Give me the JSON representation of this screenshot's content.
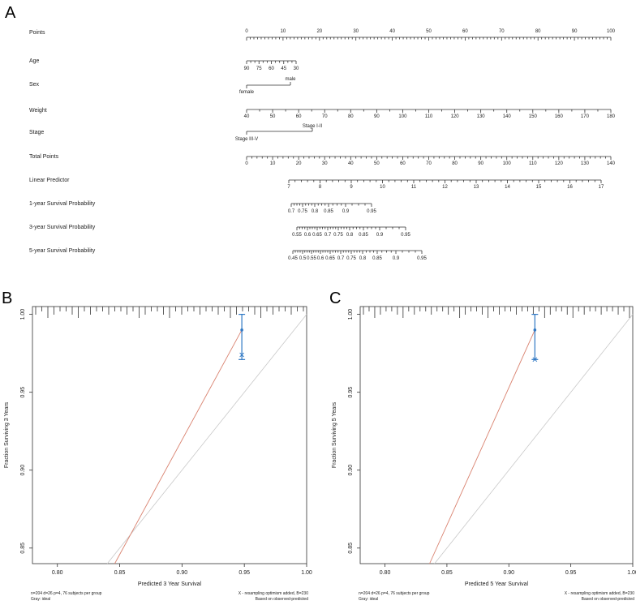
{
  "panels": {
    "a": "A",
    "b": "B",
    "c": "C"
  },
  "nomogram": {
    "rows": [
      {
        "label": "Points",
        "scale": "points"
      },
      {
        "label": "Age",
        "scale": "age"
      },
      {
        "label": "Sex",
        "scale": "sex"
      },
      {
        "label": "Weight",
        "scale": "weight"
      },
      {
        "label": "Stage",
        "scale": "stage"
      },
      {
        "label": "Total Points",
        "scale": "total"
      },
      {
        "label": "Linear Predictor",
        "scale": "lp"
      },
      {
        "label": "1-year Survival Probability",
        "scale": "s1"
      },
      {
        "label": "3-year Survival Probability",
        "scale": "s3"
      },
      {
        "label": "5-year Survival Probability",
        "scale": "s5"
      }
    ],
    "points_ticks": [
      "0",
      "10",
      "20",
      "30",
      "40",
      "50",
      "60",
      "70",
      "80",
      "90",
      "100"
    ],
    "age_ticks": [
      "90",
      "75",
      "60",
      "45",
      "30"
    ],
    "sex_levels": {
      "upper": "male",
      "lower": "female"
    },
    "weight_ticks": [
      "40",
      "50",
      "60",
      "70",
      "80",
      "90",
      "100",
      "110",
      "120",
      "130",
      "140",
      "150",
      "160",
      "170",
      "180"
    ],
    "stage_levels": {
      "upper": "Stage I-II",
      "lower": "Stage III-V"
    },
    "total_ticks": [
      "0",
      "10",
      "20",
      "30",
      "40",
      "50",
      "60",
      "70",
      "80",
      "90",
      "100",
      "110",
      "120",
      "130",
      "140"
    ],
    "lp_ticks": [
      "7",
      "8",
      "9",
      "10",
      "11",
      "12",
      "13",
      "14",
      "15",
      "16",
      "17"
    ],
    "s1_ticks": [
      "0.7",
      "0.75",
      "0.8",
      "0.85",
      "0.9",
      "0.95"
    ],
    "s3_ticks": [
      "0.55",
      "0.6",
      "0.65",
      "0.7",
      "0.75",
      "0.8",
      "0.85",
      "0.9",
      "0.95"
    ],
    "s5_ticks": [
      "0.45",
      "0.5",
      "0.55",
      "0.6",
      "0.65",
      "0.7",
      "0.75",
      "0.8",
      "0.85",
      "0.9",
      "0.95"
    ]
  },
  "chart_data": [
    {
      "type": "line",
      "panel": "B",
      "xlabel": "Predicted 3 Year Survival",
      "ylabel": "Fraction Surviving 3 Years",
      "xlim": [
        0.78,
        1.0
      ],
      "ylim": [
        0.84,
        1.005
      ],
      "x_ticks": [
        "0.80",
        "0.85",
        "0.90",
        "0.95",
        "1.00"
      ],
      "y_ticks": [
        "0.85",
        "0.90",
        "0.95",
        "1.00"
      ],
      "ideal": {
        "x": [
          0.84,
          1.0
        ],
        "y": [
          0.84,
          1.0
        ]
      },
      "apparent": {
        "x": [
          0.846,
          0.948
        ],
        "y": [
          0.84,
          0.99
        ]
      },
      "observed": {
        "x": 0.948,
        "y": 0.99,
        "ci": [
          0.971,
          1.0
        ],
        "corrected": 0.974
      },
      "rug_count": 45,
      "note_left_1": "n=204 d=26 p=4, 76 subjects per group",
      "note_left_2": "Gray: ideal",
      "note_right_1": "X - resampling optimism added, B=230",
      "note_right_2": "Based on observed-predicted",
      "colors": {
        "ideal": "#c8c8c8",
        "apparent": "#d9826f",
        "observed": "#2f78c4"
      }
    },
    {
      "type": "line",
      "panel": "C",
      "xlabel": "Predicted 5 Year Survival",
      "ylabel": "Fraction Surviving 5 Years",
      "xlim": [
        0.78,
        1.0
      ],
      "ylim": [
        0.84,
        1.005
      ],
      "x_ticks": [
        "0.80",
        "0.85",
        "0.90",
        "0.95",
        "1.00"
      ],
      "y_ticks": [
        "0.85",
        "0.90",
        "0.95",
        "1.00"
      ],
      "ideal": {
        "x": [
          0.84,
          1.0
        ],
        "y": [
          0.84,
          1.0
        ]
      },
      "apparent": {
        "x": [
          0.836,
          0.921
        ],
        "y": [
          0.84,
          0.99
        ]
      },
      "observed": {
        "x": 0.921,
        "y": 0.99,
        "ci": [
          0.971,
          1.0
        ],
        "corrected": 0.971
      },
      "rug_count": 48,
      "note_left_1": "n=204 d=26 p=4, 76 subjects per group",
      "note_left_2": "Gray: ideal",
      "note_right_1": "X - resampling optimism added, B=230",
      "note_right_2": "Based on observed-predicted",
      "colors": {
        "ideal": "#c8c8c8",
        "apparent": "#d9826f",
        "observed": "#2f78c4"
      }
    }
  ]
}
